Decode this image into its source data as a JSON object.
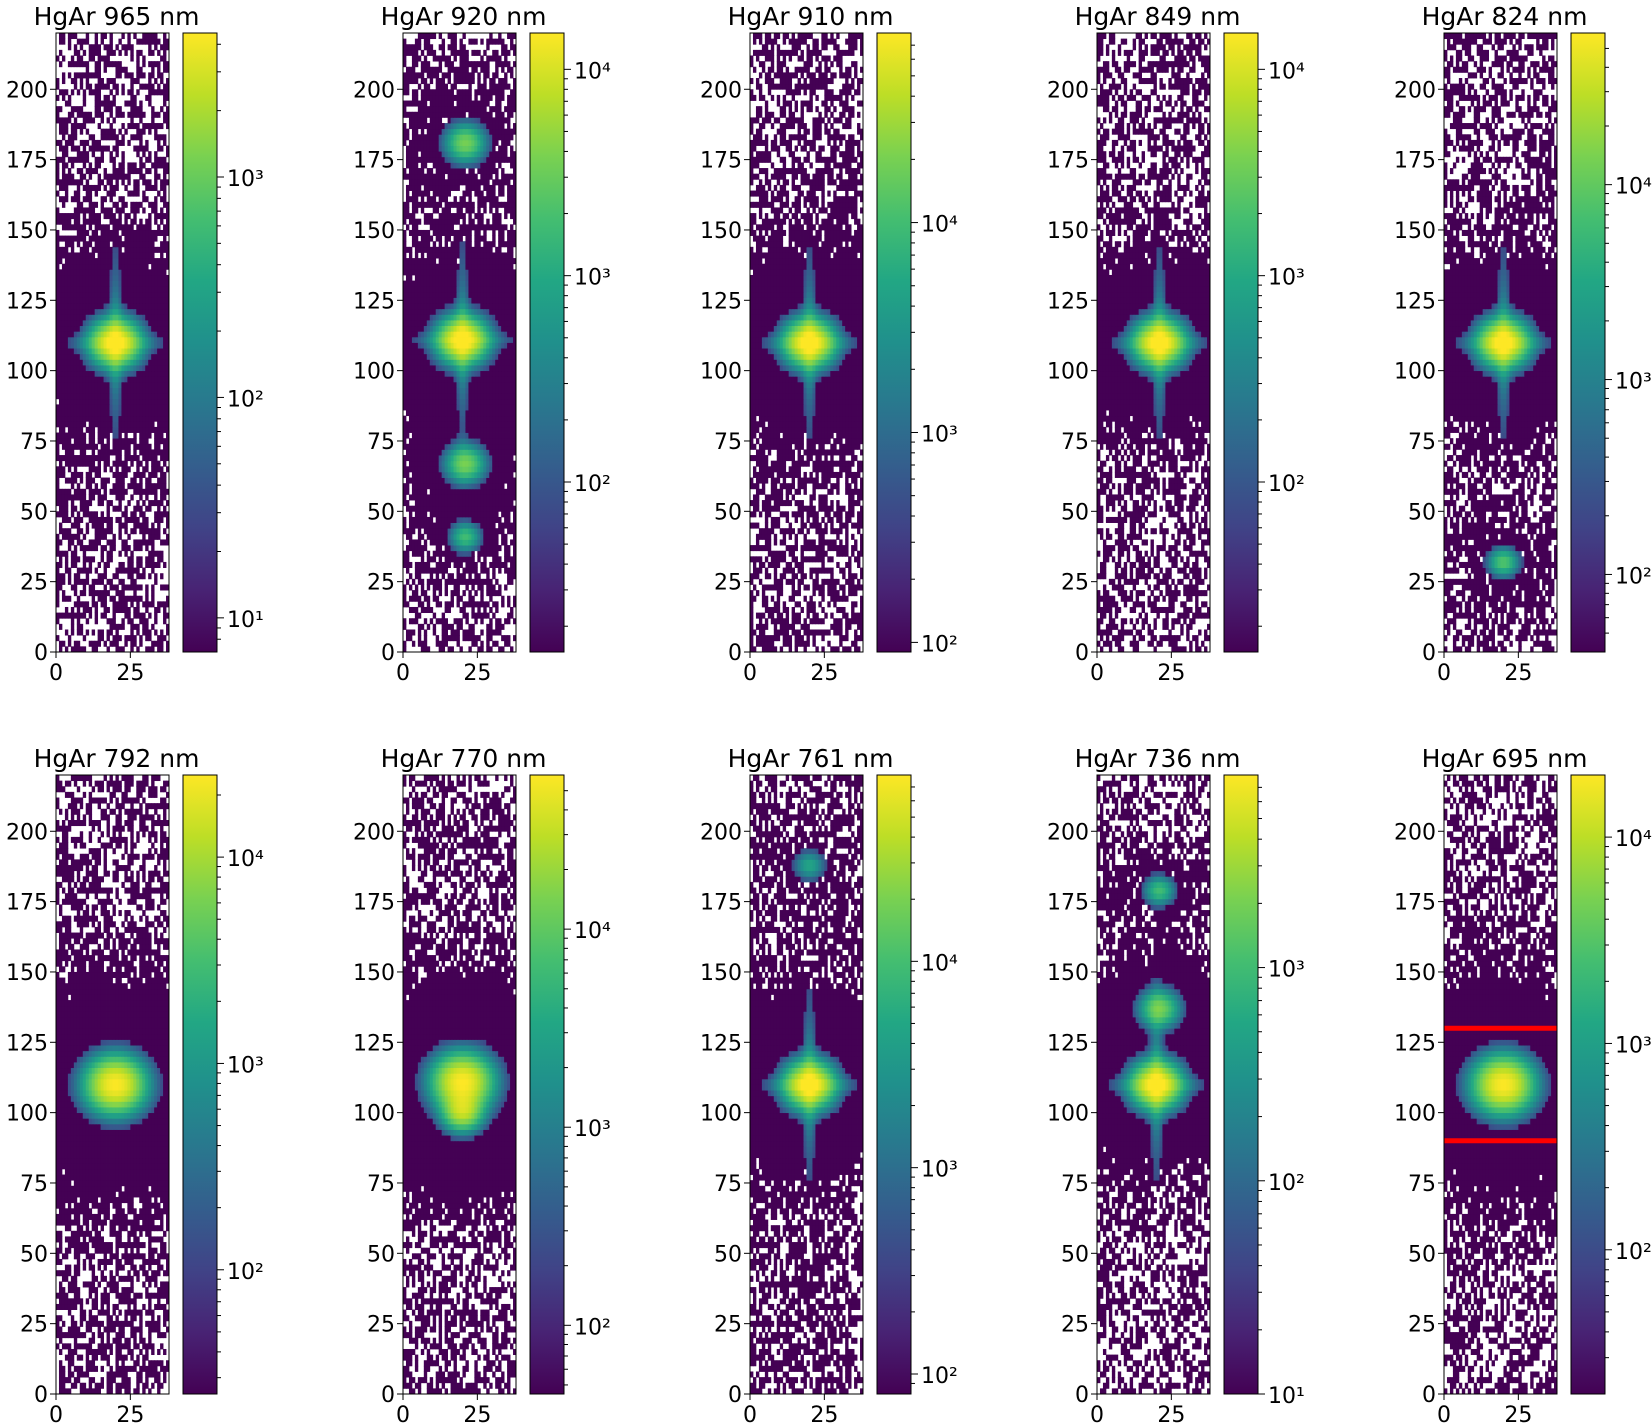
{
  "figure": {
    "rows": 2,
    "cols": 5
  },
  "chart_data": [
    {
      "type": "heatmap",
      "title": "HgAr 965 nm",
      "xlim": [
        0,
        38
      ],
      "ylim": [
        0,
        220
      ],
      "xticks": [
        0,
        25
      ],
      "yticks": [
        0,
        25,
        50,
        75,
        100,
        125,
        150,
        175,
        200
      ],
      "colorbar": {
        "scale": "log",
        "cmap": "viridis",
        "min": 7,
        "max": 4500,
        "tick_exponents": [
          1,
          2,
          3
        ]
      },
      "spots": [
        {
          "x": 20,
          "y": 110,
          "amplitude": 1,
          "sigma": 5
        }
      ],
      "cross_arms": true,
      "dark_fraction": 0.55,
      "red_lines": []
    },
    {
      "type": "heatmap",
      "title": "HgAr 920 nm",
      "xlim": [
        0,
        38
      ],
      "ylim": [
        0,
        220
      ],
      "xticks": [
        0,
        25
      ],
      "yticks": [
        0,
        25,
        50,
        75,
        100,
        125,
        150,
        175,
        200
      ],
      "colorbar": {
        "scale": "log",
        "cmap": "viridis",
        "min": 15,
        "max": 15000,
        "tick_exponents": [
          2,
          3,
          4
        ]
      },
      "spots": [
        {
          "x": 20,
          "y": 111,
          "amplitude": 1,
          "sigma": 5
        },
        {
          "x": 21,
          "y": 181,
          "amplitude": 0.45,
          "sigma": 4
        },
        {
          "x": 21,
          "y": 67,
          "amplitude": 0.45,
          "sigma": 4
        },
        {
          "x": 21,
          "y": 41,
          "amplitude": 0.3,
          "sigma": 3
        }
      ],
      "cross_arms": true,
      "dark_fraction": 0.5,
      "red_lines": []
    },
    {
      "type": "heatmap",
      "title": "HgAr 910 nm",
      "xlim": [
        0,
        38
      ],
      "ylim": [
        0,
        220
      ],
      "xticks": [
        0,
        25
      ],
      "yticks": [
        0,
        25,
        50,
        75,
        100,
        125,
        150,
        175,
        200
      ],
      "colorbar": {
        "scale": "log",
        "cmap": "viridis",
        "min": 90,
        "max": 80000,
        "tick_exponents": [
          2,
          3,
          4
        ]
      },
      "spots": [
        {
          "x": 20,
          "y": 110,
          "amplitude": 1,
          "sigma": 5
        }
      ],
      "cross_arms": true,
      "dark_fraction": 0.6,
      "red_lines": []
    },
    {
      "type": "heatmap",
      "title": "HgAr 849 nm",
      "xlim": [
        0,
        38
      ],
      "ylim": [
        0,
        220
      ],
      "xticks": [
        0,
        25
      ],
      "yticks": [
        0,
        25,
        50,
        75,
        100,
        125,
        150,
        175,
        200
      ],
      "colorbar": {
        "scale": "log",
        "cmap": "viridis",
        "min": 15,
        "max": 15000,
        "tick_exponents": [
          2,
          3,
          4
        ]
      },
      "spots": [
        {
          "x": 21,
          "y": 110,
          "amplitude": 1,
          "sigma": 5
        }
      ],
      "cross_arms": true,
      "dark_fraction": 0.55,
      "red_lines": []
    },
    {
      "type": "heatmap",
      "title": "HgAr 824 nm",
      "xlim": [
        0,
        38
      ],
      "ylim": [
        0,
        220
      ],
      "xticks": [
        0,
        25
      ],
      "yticks": [
        0,
        25,
        50,
        75,
        100,
        125,
        150,
        175,
        200
      ],
      "colorbar": {
        "scale": "log",
        "cmap": "viridis",
        "min": 40,
        "max": 60000,
        "tick_exponents": [
          2,
          3,
          4
        ]
      },
      "spots": [
        {
          "x": 20,
          "y": 110,
          "amplitude": 1,
          "sigma": 5
        },
        {
          "x": 20,
          "y": 32,
          "amplitude": 0.35,
          "sigma": 3
        }
      ],
      "cross_arms": true,
      "dark_fraction": 0.55,
      "red_lines": []
    },
    {
      "type": "heatmap",
      "title": "HgAr 792 nm",
      "xlim": [
        0,
        38
      ],
      "ylim": [
        0,
        220
      ],
      "xticks": [
        0,
        25
      ],
      "yticks": [
        0,
        25,
        50,
        75,
        100,
        125,
        150,
        175,
        200
      ],
      "colorbar": {
        "scale": "log",
        "cmap": "viridis",
        "min": 25,
        "max": 25000,
        "tick_exponents": [
          2,
          3,
          4
        ]
      },
      "spots": [
        {
          "x": 20,
          "y": 110,
          "amplitude": 1,
          "sigma": 6
        }
      ],
      "cross_arms": false,
      "dark_fraction": 0.55,
      "red_lines": []
    },
    {
      "type": "heatmap",
      "title": "HgAr 770 nm",
      "xlim": [
        0,
        38
      ],
      "ylim": [
        0,
        220
      ],
      "xticks": [
        0,
        25
      ],
      "yticks": [
        0,
        25,
        50,
        75,
        100,
        125,
        150,
        175,
        200
      ],
      "colorbar": {
        "scale": "log",
        "cmap": "viridis",
        "min": 45,
        "max": 60000,
        "tick_exponents": [
          2,
          3,
          4
        ]
      },
      "spots": [
        {
          "x": 20,
          "y": 111,
          "amplitude": 1,
          "sigma": 6
        },
        {
          "x": 20,
          "y": 100,
          "amplitude": 0.6,
          "sigma": 4
        }
      ],
      "cross_arms": false,
      "dark_fraction": 0.55,
      "red_lines": []
    },
    {
      "type": "heatmap",
      "title": "HgAr 761 nm",
      "xlim": [
        0,
        38
      ],
      "ylim": [
        0,
        220
      ],
      "xticks": [
        0,
        25
      ],
      "yticks": [
        0,
        25,
        50,
        75,
        100,
        125,
        150,
        175,
        200
      ],
      "colorbar": {
        "scale": "log",
        "cmap": "viridis",
        "min": 80,
        "max": 80000,
        "tick_exponents": [
          2,
          3,
          4
        ]
      },
      "spots": [
        {
          "x": 20,
          "y": 110,
          "amplitude": 1,
          "sigma": 5
        },
        {
          "x": 20,
          "y": 188,
          "amplitude": 0.2,
          "sigma": 3
        }
      ],
      "cross_arms": true,
      "dark_fraction": 0.6,
      "red_lines": []
    },
    {
      "type": "heatmap",
      "title": "HgAr 736 nm",
      "xlim": [
        0,
        38
      ],
      "ylim": [
        0,
        220
      ],
      "xticks": [
        0,
        25
      ],
      "yticks": [
        0,
        25,
        50,
        75,
        100,
        125,
        150,
        175,
        200
      ],
      "colorbar": {
        "scale": "log",
        "cmap": "viridis",
        "min": 10,
        "max": 8000,
        "tick_exponents": [
          1,
          2,
          3
        ]
      },
      "spots": [
        {
          "x": 20,
          "y": 110,
          "amplitude": 1,
          "sigma": 5
        },
        {
          "x": 21,
          "y": 137,
          "amplitude": 0.45,
          "sigma": 4
        },
        {
          "x": 21,
          "y": 179,
          "amplitude": 0.3,
          "sigma": 3
        }
      ],
      "cross_arms": true,
      "dark_fraction": 0.5,
      "red_lines": []
    },
    {
      "type": "heatmap",
      "title": "HgAr 695 nm",
      "xlim": [
        0,
        38
      ],
      "ylim": [
        0,
        220
      ],
      "xticks": [
        0,
        25
      ],
      "yticks": [
        0,
        25,
        50,
        75,
        100,
        125,
        150,
        175,
        200
      ],
      "colorbar": {
        "scale": "log",
        "cmap": "viridis",
        "min": 20,
        "max": 20000,
        "tick_exponents": [
          2,
          3,
          4
        ]
      },
      "spots": [
        {
          "x": 20,
          "y": 110,
          "amplitude": 1,
          "sigma": 6
        }
      ],
      "cross_arms": false,
      "dark_fraction": 0.55,
      "red_lines": [
        130,
        90
      ]
    }
  ]
}
